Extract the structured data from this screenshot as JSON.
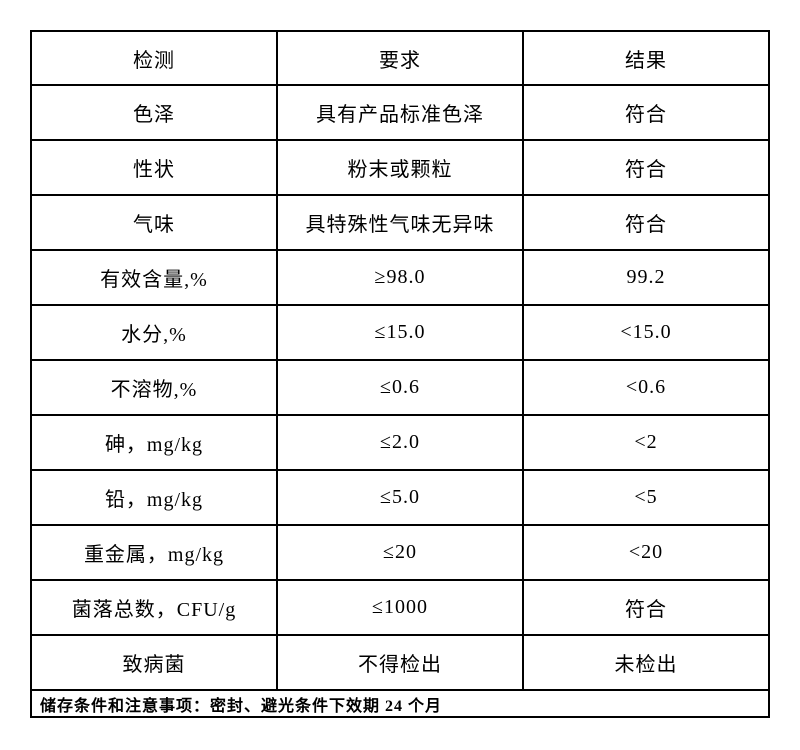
{
  "table": {
    "headers": [
      "检测",
      "要求",
      "结果"
    ],
    "rows": [
      [
        "色泽",
        "具有产品标准色泽",
        "符合"
      ],
      [
        "性状",
        "粉末或颗粒",
        "符合"
      ],
      [
        "气味",
        "具特殊性气味无异味",
        "符合"
      ],
      [
        "有效含量,%",
        "≥98.0",
        "99.2"
      ],
      [
        "水分,%",
        "≤15.0",
        "<15.0"
      ],
      [
        "不溶物,%",
        "≤0.6",
        "<0.6"
      ],
      [
        "砷，mg/kg",
        "≤2.0",
        "<2"
      ],
      [
        "铅，mg/kg",
        "≤5.0",
        "<5"
      ],
      [
        "重金属，mg/kg",
        "≤20",
        "<20"
      ],
      [
        "菌落总数，CFU/g",
        "≤1000",
        "符合"
      ],
      [
        "致病菌",
        "不得检出",
        "未检出"
      ]
    ],
    "footer_note": "储存条件和注意事项：密封、避光条件下效期 24 个月"
  }
}
